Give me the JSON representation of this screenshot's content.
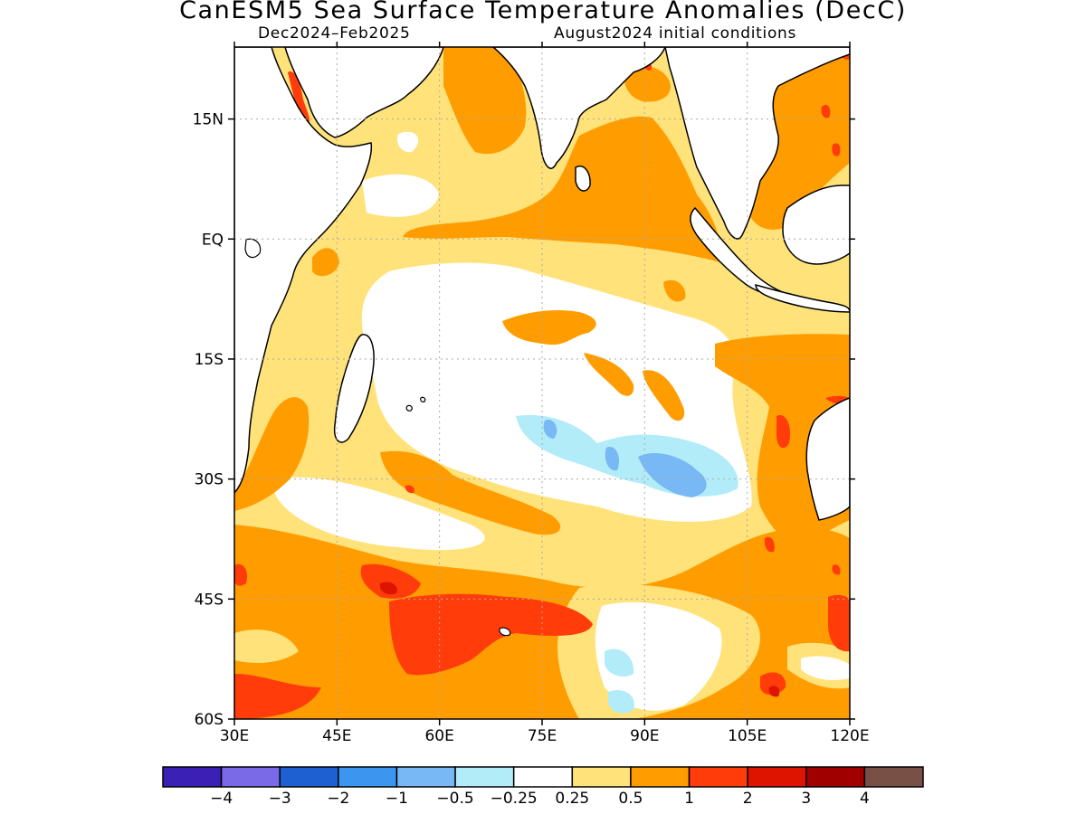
{
  "title": "CanESM5 Sea Surface Temperature Anomalies (DecC)",
  "subtitle_left": "Dec2024–Feb2025",
  "subtitle_right": "August2024 initial conditions",
  "map": {
    "lon_range": [
      30,
      120
    ],
    "lat_range": [
      -60,
      24
    ],
    "x_ticks": [
      {
        "lon": 30,
        "label": "30E"
      },
      {
        "lon": 45,
        "label": "45E"
      },
      {
        "lon": 60,
        "label": "60E"
      },
      {
        "lon": 75,
        "label": "75E"
      },
      {
        "lon": 90,
        "label": "90E"
      },
      {
        "lon": 105,
        "label": "105E"
      },
      {
        "lon": 120,
        "label": "120E"
      }
    ],
    "y_ticks": [
      {
        "lat": 15,
        "label": "15N"
      },
      {
        "lat": 0,
        "label": "EQ"
      },
      {
        "lat": -15,
        "label": "15S"
      },
      {
        "lat": -30,
        "label": "30S"
      },
      {
        "lat": -45,
        "label": "45S"
      },
      {
        "lat": -60,
        "label": "60S"
      }
    ],
    "gridlines": true
  },
  "colorbar": {
    "colors": [
      "#3a20b4",
      "#7a6ae8",
      "#1e60d2",
      "#3c96f0",
      "#78b8f5",
      "#b2ecf8",
      "#ffffff",
      "#ffe27a",
      "#ff9d00",
      "#ff3c0a",
      "#de1400",
      "#a00000",
      "#785046"
    ],
    "labels": [
      "−4",
      "−3",
      "−2",
      "−1",
      "−0.5",
      "−0.25",
      "0.25",
      "0.5",
      "1",
      "2",
      "3",
      "4"
    ]
  }
}
